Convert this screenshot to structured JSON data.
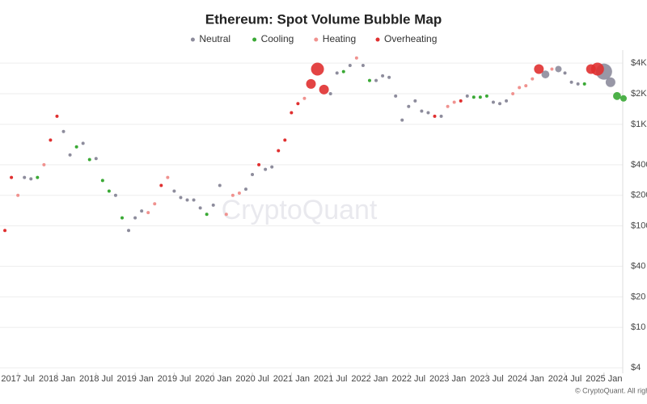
{
  "chart_data": {
    "type": "scatter",
    "title": "Ethereum: Spot Volume Bubble Map",
    "watermark": "CryptoQuant",
    "footer": "© CryptoQuant. All rights reserved.",
    "log_y": true,
    "grid": true,
    "legend": "top",
    "xlim": [
      "2017-04",
      "2025-04"
    ],
    "ylim": [
      3.6,
      5000
    ],
    "xticks": [
      {
        "value": "2017-07",
        "label": "2017 Jul"
      },
      {
        "value": "2018-01",
        "label": "2018 Jan"
      },
      {
        "value": "2018-07",
        "label": "2018 Jul"
      },
      {
        "value": "2019-01",
        "label": "2019 Jan"
      },
      {
        "value": "2019-07",
        "label": "2019 Jul"
      },
      {
        "value": "2020-01",
        "label": "2020 Jan"
      },
      {
        "value": "2020-07",
        "label": "2020 Jul"
      },
      {
        "value": "2021-01",
        "label": "2021 Jan"
      },
      {
        "value": "2021-07",
        "label": "2021 Jul"
      },
      {
        "value": "2022-01",
        "label": "2022 Jan"
      },
      {
        "value": "2022-07",
        "label": "2022 Jul"
      },
      {
        "value": "2023-01",
        "label": "2023 Jan"
      },
      {
        "value": "2023-07",
        "label": "2023 Jul"
      },
      {
        "value": "2024-01",
        "label": "2024 Jan"
      },
      {
        "value": "2024-07",
        "label": "2024 Jul"
      },
      {
        "value": "2025-01",
        "label": "2025 Jan"
      }
    ],
    "yticks": [
      {
        "value": 4,
        "label": "$4"
      },
      {
        "value": 10,
        "label": "$10"
      },
      {
        "value": 20,
        "label": "$20"
      },
      {
        "value": 40,
        "label": "$40"
      },
      {
        "value": 100,
        "label": "$100"
      },
      {
        "value": 200,
        "label": "$200"
      },
      {
        "value": 400,
        "label": "$400"
      },
      {
        "value": 1000,
        "label": "$1K"
      },
      {
        "value": 2000,
        "label": "$2K"
      },
      {
        "value": 4000,
        "label": "$4K"
      }
    ],
    "series": [
      {
        "name": "Neutral",
        "color": "#8d8c9c",
        "x": [
          "2017-08",
          "2017-09",
          "2018-02",
          "2018-03",
          "2018-05",
          "2018-07",
          "2018-10",
          "2018-12",
          "2019-01",
          "2019-02",
          "2019-07",
          "2019-08",
          "2019-09",
          "2019-10",
          "2019-11",
          "2020-01",
          "2020-02",
          "2020-06",
          "2020-07",
          "2020-09",
          "2020-10",
          "2021-07",
          "2021-08",
          "2021-10",
          "2021-12",
          "2022-02",
          "2022-03",
          "2022-04",
          "2022-05",
          "2022-06",
          "2022-07",
          "2022-08",
          "2022-09",
          "2022-10",
          "2022-12",
          "2023-04",
          "2023-08",
          "2023-09",
          "2023-10",
          "2024-04",
          "2024-06",
          "2024-07",
          "2024-08",
          "2024-09",
          "2025-01",
          "2025-02"
        ],
        "values": [
          300,
          290,
          850,
          500,
          650,
          460,
          200,
          90,
          120,
          140,
          220,
          190,
          180,
          180,
          150,
          160,
          250,
          230,
          320,
          360,
          380,
          2000,
          3200,
          3800,
          3800,
          2700,
          3000,
          2900,
          1900,
          1100,
          1500,
          1700,
          1350,
          1300,
          1200,
          1900,
          1650,
          1600,
          1700,
          3100,
          3500,
          3200,
          2600,
          2500,
          3300,
          2600
        ],
        "sizes": [
          1,
          1,
          1,
          1,
          1,
          1,
          1,
          1,
          1,
          1,
          1,
          1,
          1,
          1,
          1,
          1,
          1,
          1,
          1,
          1,
          1,
          1,
          1,
          1,
          1,
          1,
          1,
          1,
          1,
          1,
          1,
          1,
          1,
          1,
          1,
          1,
          1,
          1,
          1,
          6,
          4,
          1,
          1,
          1,
          25,
          9
        ]
      },
      {
        "name": "Cooling",
        "color": "#3aa935",
        "x": [
          "2017-10",
          "2018-04",
          "2018-06",
          "2018-08",
          "2018-09",
          "2018-11",
          "2019-12",
          "2021-09",
          "2022-01",
          "2023-05",
          "2023-06",
          "2023-07",
          "2024-10",
          "2025-03",
          "2025-04"
        ],
        "values": [
          300,
          600,
          450,
          280,
          220,
          120,
          130,
          3300,
          2700,
          1850,
          1850,
          1900,
          2500,
          1900,
          1800
        ],
        "sizes": [
          1,
          1,
          1,
          1,
          1,
          1,
          1,
          1,
          1,
          1,
          1,
          1,
          1,
          6,
          4
        ]
      },
      {
        "name": "Heating",
        "color": "#f0928f",
        "x": [
          "2017-07",
          "2017-11",
          "2019-03",
          "2019-04",
          "2019-06",
          "2020-03",
          "2020-04",
          "2020-05",
          "2021-03",
          "2021-11",
          "2023-01",
          "2023-02",
          "2023-11",
          "2023-12",
          "2024-01",
          "2024-02",
          "2024-05"
        ],
        "values": [
          200,
          400,
          135,
          165,
          300,
          130,
          200,
          210,
          1800,
          4500,
          1500,
          1650,
          2000,
          2300,
          2400,
          2800,
          3500
        ],
        "sizes": [
          1,
          1,
          1,
          1,
          1,
          1,
          1,
          1,
          1,
          1,
          1,
          1,
          1,
          1,
          1,
          1,
          1
        ]
      },
      {
        "name": "Overheating",
        "color": "#e03030",
        "x": [
          "2017-04",
          "2017-05",
          "2017-06",
          "2017-12",
          "2018-01",
          "2019-05",
          "2020-08",
          "2020-11",
          "2020-12",
          "2021-01",
          "2021-02",
          "2021-04",
          "2021-05",
          "2021-06",
          "2022-11",
          "2023-03",
          "2024-03",
          "2024-11",
          "2024-12"
        ],
        "values": [
          50,
          90,
          300,
          700,
          1200,
          250,
          400,
          550,
          700,
          1300,
          1600,
          2500,
          3500,
          2200,
          1200,
          1700,
          3500,
          3500,
          3500
        ],
        "sizes": [
          1,
          1,
          1,
          1,
          1,
          1,
          1,
          1,
          1,
          1,
          1,
          9,
          16,
          9,
          1,
          1,
          9,
          9,
          16
        ]
      }
    ]
  }
}
